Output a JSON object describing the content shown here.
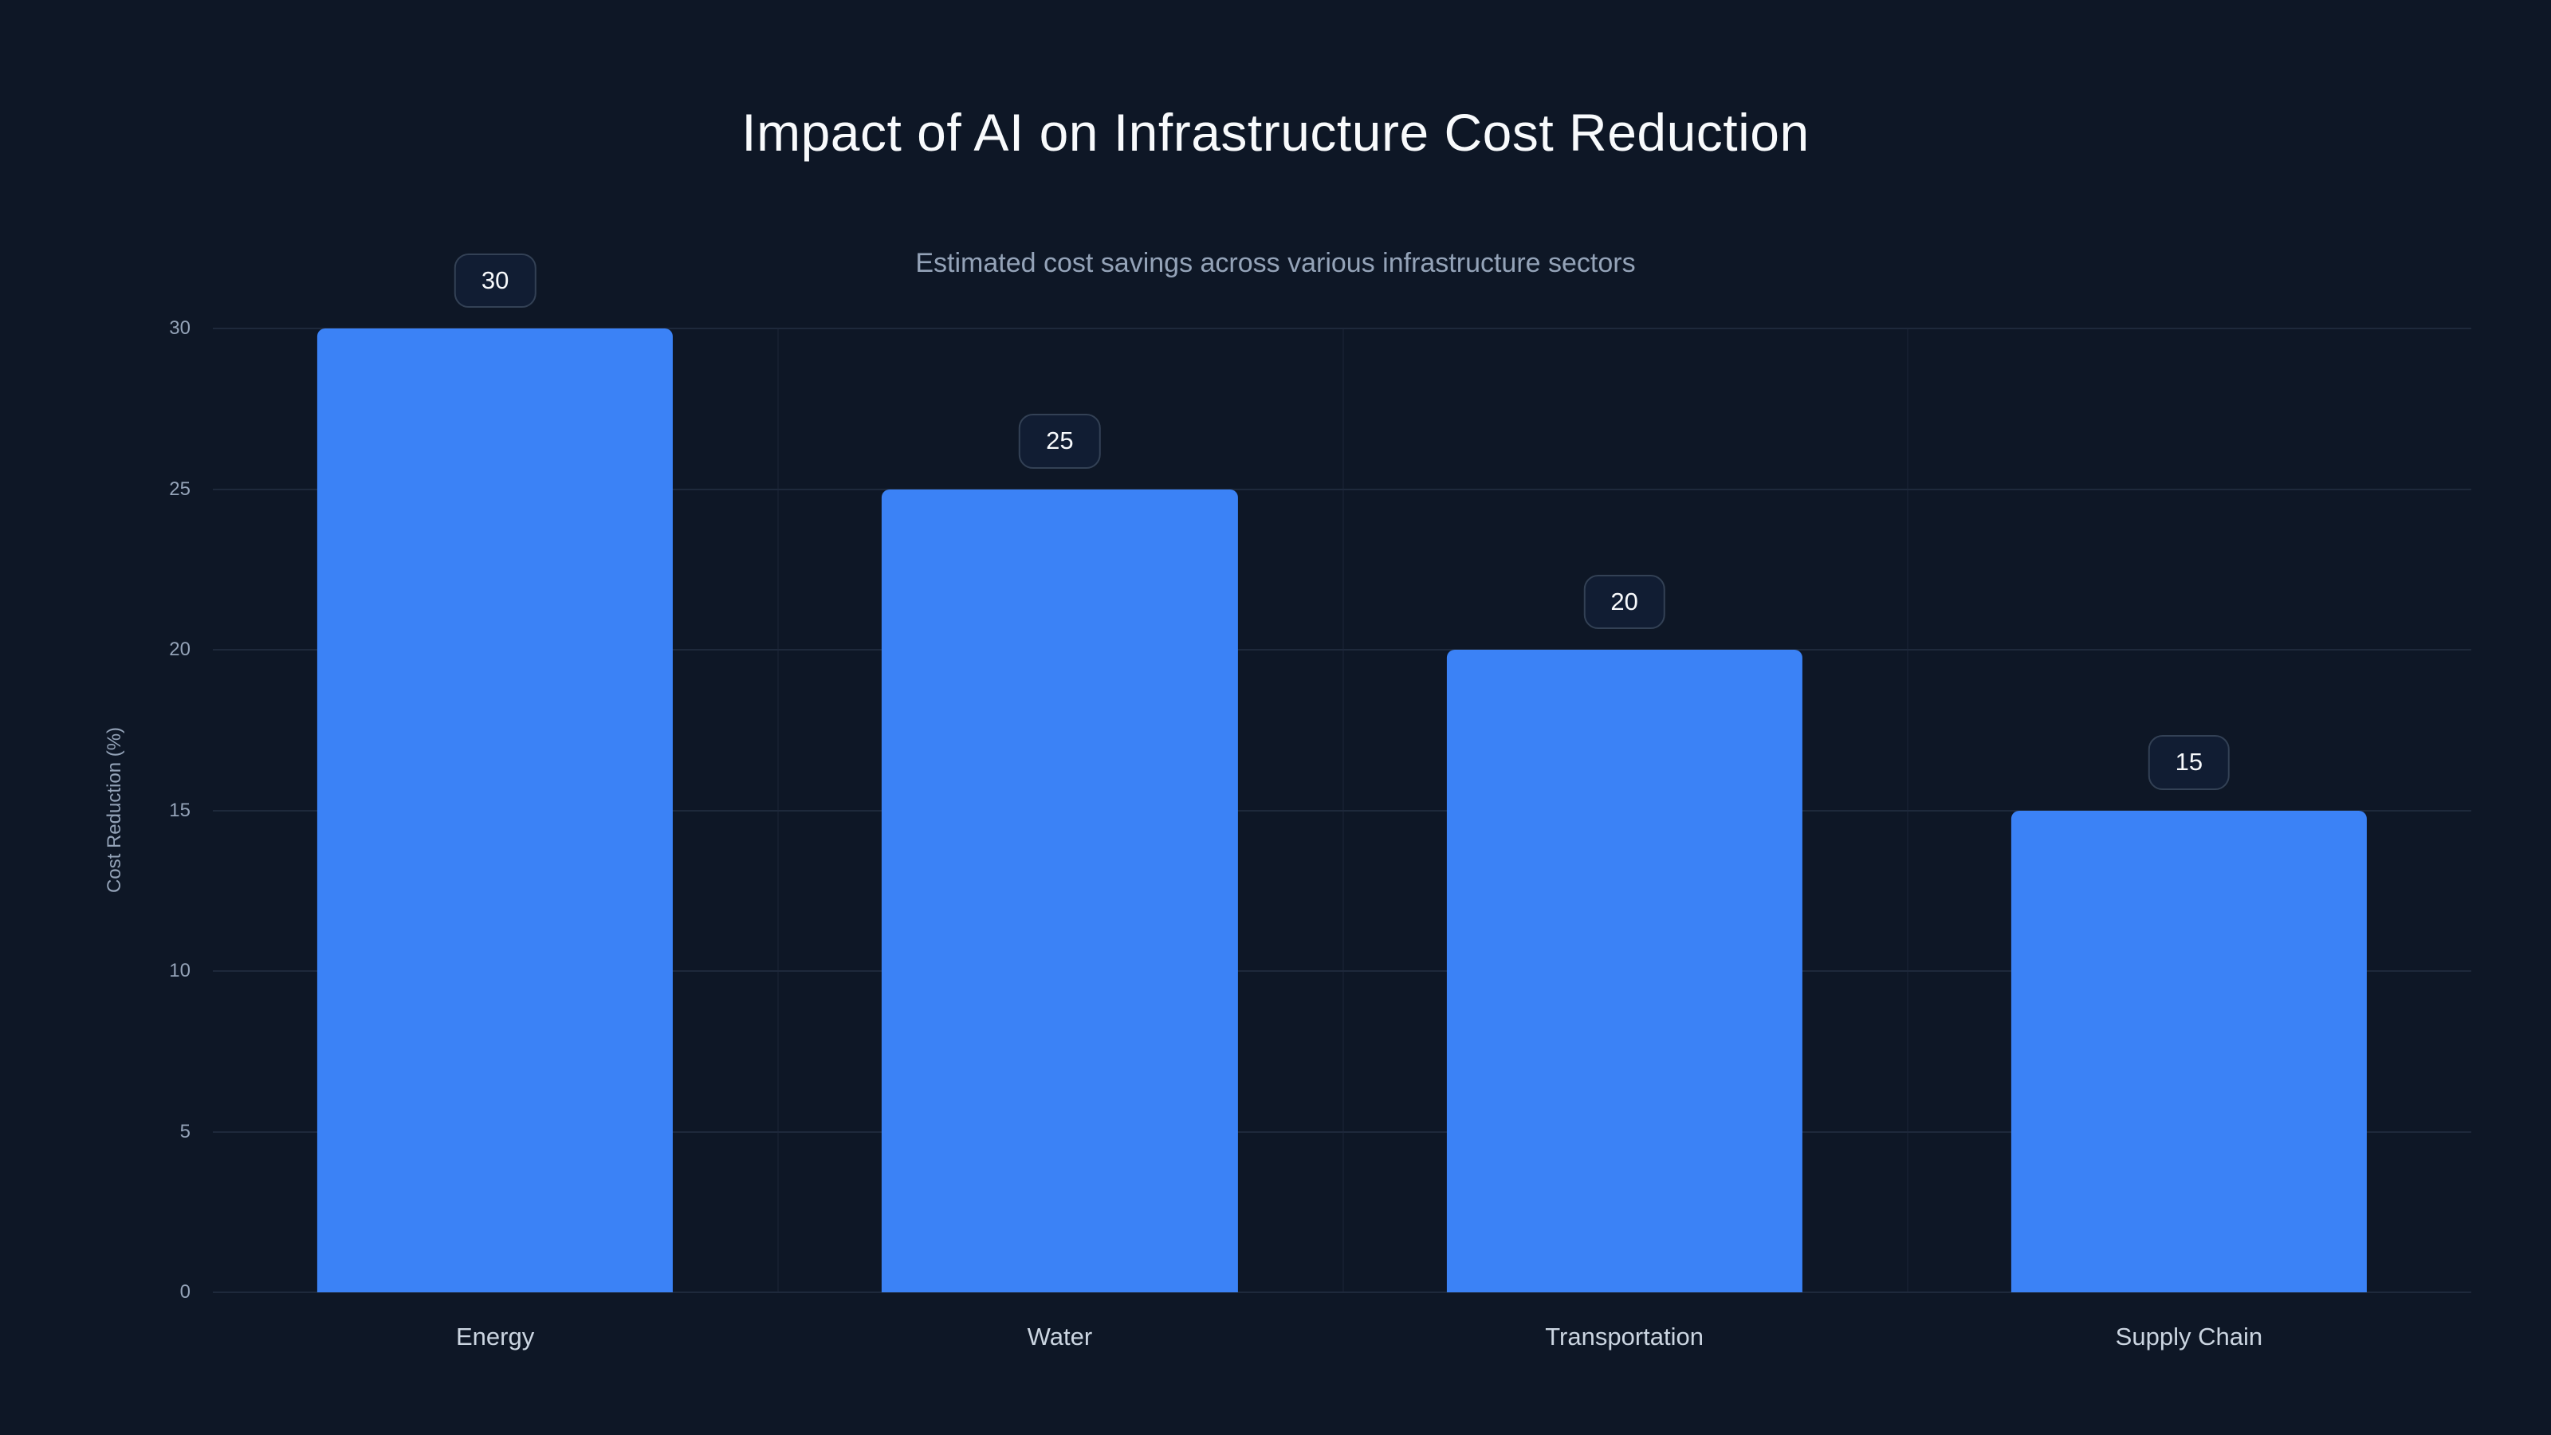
{
  "page": {
    "title": "Impact of AI on Infrastructure Cost Reduction",
    "subtitle": "Estimated cost savings across various infrastructure sectors"
  },
  "colors": {
    "background": "#0e1726",
    "bar": "#3b82f6",
    "grid": "#1e293b",
    "title_text": "#f8fafc",
    "muted_text": "#94a3b8",
    "label_text": "#cbd5e1",
    "badge_bg": "#111d33",
    "badge_border": "#334155",
    "badge_text": "#f8fafc"
  },
  "chart_data": {
    "type": "bar",
    "title": "Impact of AI on Infrastructure Cost Reduction",
    "subtitle": "Estimated cost savings across various infrastructure sectors",
    "categories": [
      "Energy",
      "Water",
      "Transportation",
      "Supply Chain"
    ],
    "values": [
      30,
      25,
      20,
      15
    ],
    "xlabel": "",
    "ylabel": "Cost Reduction (%)",
    "ylim": [
      0,
      30
    ],
    "yticks": [
      0,
      5,
      10,
      15,
      20,
      25,
      30
    ],
    "grid": true,
    "legend": false,
    "data_labels": true,
    "legend_position": "none"
  }
}
